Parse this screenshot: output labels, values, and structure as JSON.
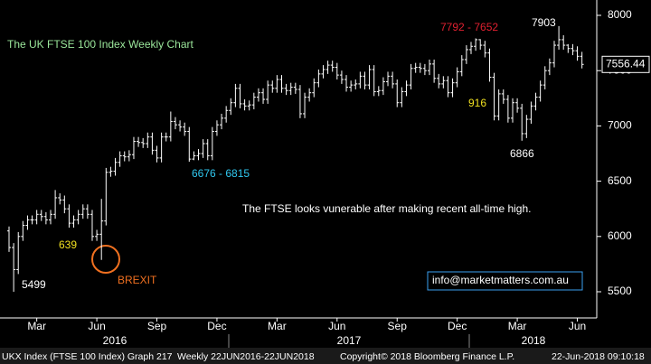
{
  "chart_data": {
    "type": "ohlc",
    "title": "The UK FTSE 100 Index Weekly Chart",
    "color": "#ffffff",
    "categories": [
      null,
      null,
      null,
      null,
      null,
      null,
      null,
      null,
      null,
      null,
      null,
      null,
      null,
      null,
      null,
      null,
      null,
      null,
      null,
      null,
      null,
      null,
      null,
      null,
      null,
      null,
      null,
      null,
      null,
      null,
      null,
      null,
      null,
      null,
      null,
      null,
      null,
      null,
      null,
      null,
      null,
      null,
      null,
      null,
      null,
      null,
      null,
      null,
      null,
      null,
      null,
      null,
      null,
      null,
      null,
      null,
      null,
      null,
      null,
      null,
      null,
      null,
      null,
      null,
      null,
      null,
      null,
      null,
      null,
      null,
      null,
      null,
      null,
      null,
      null,
      null,
      null,
      null,
      null,
      null,
      null,
      null,
      null,
      null,
      null,
      null,
      null,
      null,
      null,
      null,
      null,
      null,
      null,
      null,
      null,
      null,
      null,
      null,
      null,
      null,
      null,
      null,
      null,
      null,
      null,
      null,
      null,
      null,
      null,
      null,
      null,
      null,
      null,
      null,
      null,
      null,
      null,
      null,
      null,
      null,
      null,
      null,
      null,
      null,
      null
    ],
    "open": [
      6050,
      5900,
      5700,
      6000,
      6100,
      6150,
      6150,
      6200,
      6180,
      6150,
      6200,
      6350,
      6330,
      6250,
      6120,
      6150,
      6200,
      6250,
      6200,
      6000,
      6020,
      6140,
      6580,
      6590,
      6670,
      6730,
      6720,
      6740,
      6860,
      6850,
      6840,
      6900,
      6780,
      6710,
      6900,
      6900,
      7040,
      7010,
      6990,
      6950,
      6700,
      6730,
      6750,
      6840,
      6730,
      6950,
      7010,
      7070,
      7140,
      7210,
      7340,
      7200,
      7180,
      7190,
      7260,
      7300,
      7240,
      7370,
      7340,
      7420,
      7340,
      7320,
      7350,
      7330,
      7110,
      7260,
      7300,
      7390,
      7470,
      7510,
      7550,
      7530,
      7460,
      7420,
      7350,
      7370,
      7380,
      7450,
      7370,
      7510,
      7310,
      7320,
      7400,
      7450,
      7380,
      7210,
      7310,
      7370,
      7520,
      7530,
      7520,
      7500,
      7560,
      7430,
      7380,
      7410,
      7300,
      7390,
      7490,
      7600,
      7690,
      7720,
      7780,
      7730,
      7660,
      7440,
      7090,
      7290,
      7240,
      7070,
      7210,
      7160,
      6930,
      7060,
      7180,
      7260,
      7370,
      7500,
      7570,
      7730,
      7780,
      7730,
      7700,
      7680,
      7630
    ],
    "high": [
      6090,
      5940,
      6040,
      6140,
      6190,
      6190,
      6240,
      6240,
      6220,
      6240,
      6420,
      6390,
      6370,
      6290,
      6190,
      6240,
      6290,
      6290,
      6240,
      6060,
      6340,
      6620,
      6630,
      6710,
      6770,
      6770,
      6780,
      6900,
      6900,
      6890,
      6940,
      6940,
      6820,
      6940,
      6940,
      7130,
      7080,
      7050,
      7030,
      6990,
      6770,
      6790,
      6880,
      6880,
      6990,
      7050,
      7110,
      7180,
      7250,
      7380,
      7380,
      7240,
      7230,
      7300,
      7340,
      7340,
      7410,
      7410,
      7460,
      7460,
      7380,
      7390,
      7390,
      7370,
      7300,
      7340,
      7430,
      7510,
      7550,
      7590,
      7590,
      7570,
      7500,
      7460,
      7410,
      7420,
      7490,
      7490,
      7550,
      7550,
      7360,
      7440,
      7490,
      7490,
      7420,
      7350,
      7410,
      7560,
      7570,
      7570,
      7560,
      7600,
      7600,
      7470,
      7450,
      7450,
      7430,
      7530,
      7640,
      7730,
      7760,
      7792,
      7785,
      7770,
      7700,
      7480,
      7330,
      7330,
      7280,
      7250,
      7250,
      7200,
      7100,
      7220,
      7300,
      7410,
      7540,
      7610,
      7770,
      7903,
      7820,
      7740,
      7740,
      7720,
      7670
    ],
    "low": [
      5860,
      5499,
      5660,
      5960,
      6060,
      6110,
      6110,
      6140,
      6110,
      6110,
      6160,
      6290,
      6210,
      6080,
      6080,
      6110,
      6160,
      6160,
      5960,
      5960,
      5788,
      6100,
      6540,
      6550,
      6630,
      6680,
      6680,
      6700,
      6810,
      6800,
      6800,
      6740,
      6670,
      6670,
      6860,
      6860,
      6970,
      6950,
      6910,
      6676,
      6690,
      6690,
      6710,
      6690,
      6690,
      6910,
      6970,
      7030,
      7100,
      7170,
      7160,
      7140,
      7140,
      7150,
      7220,
      7200,
      7200,
      7300,
      7300,
      7300,
      7280,
      7280,
      7290,
      7070,
      7070,
      7220,
      7260,
      7350,
      7430,
      7470,
      7490,
      7420,
      7380,
      7310,
      7310,
      7330,
      7340,
      7330,
      7330,
      7270,
      7270,
      7280,
      7360,
      7340,
      7170,
      7170,
      7270,
      7330,
      7480,
      7480,
      7460,
      7460,
      7390,
      7340,
      7340,
      7260,
      7260,
      7350,
      7450,
      7560,
      7650,
      7680,
      7690,
      7620,
      7400,
      7050,
      7050,
      7200,
      7030,
      7030,
      7120,
      6866,
      6890,
      7020,
      7140,
      7220,
      7330,
      7460,
      7530,
      7690,
      7690,
      7660,
      7640,
      7590,
      7520
    ],
    "close": [
      5900,
      5700,
      6000,
      6100,
      6150,
      6150,
      6200,
      6180,
      6150,
      6200,
      6350,
      6330,
      6250,
      6120,
      6150,
      6200,
      6250,
      6200,
      6000,
      6020,
      6140,
      6580,
      6590,
      6670,
      6730,
      6720,
      6740,
      6860,
      6850,
      6840,
      6900,
      6780,
      6710,
      6900,
      6900,
      7040,
      7010,
      6990,
      6950,
      6700,
      6730,
      6750,
      6840,
      6730,
      6950,
      7010,
      7070,
      7140,
      7210,
      7340,
      7200,
      7180,
      7190,
      7260,
      7300,
      7240,
      7370,
      7340,
      7420,
      7340,
      7320,
      7350,
      7330,
      7110,
      7260,
      7300,
      7390,
      7470,
      7510,
      7550,
      7530,
      7460,
      7420,
      7350,
      7370,
      7380,
      7450,
      7370,
      7510,
      7310,
      7320,
      7400,
      7450,
      7380,
      7210,
      7310,
      7370,
      7520,
      7530,
      7520,
      7500,
      7560,
      7430,
      7380,
      7410,
      7300,
      7390,
      7490,
      7600,
      7690,
      7720,
      7780,
      7730,
      7660,
      7440,
      7090,
      7290,
      7240,
      7070,
      7210,
      7160,
      6930,
      7060,
      7180,
      7260,
      7370,
      7500,
      7570,
      7730,
      7780,
      7730,
      7700,
      7680,
      7630,
      7556.44
    ],
    "ylim": [
      5263,
      8139
    ],
    "yticks": [
      5500,
      6000,
      6500,
      7000,
      7500,
      8000
    ],
    "xticks": [
      {
        "value": 6,
        "label": "Mar"
      },
      {
        "value": 19,
        "label": "Jun"
      },
      {
        "value": 32,
        "label": "Sep"
      },
      {
        "value": 45,
        "label": "Dec"
      },
      {
        "value": 58,
        "label": "Mar"
      },
      {
        "value": 71,
        "label": "Jun"
      },
      {
        "value": 84,
        "label": "Sep"
      },
      {
        "value": 97,
        "label": "Dec"
      },
      {
        "value": 110,
        "label": "Mar"
      },
      {
        "value": 123,
        "label": "Jun"
      }
    ],
    "years": [
      "2016",
      "2017",
      "2018"
    ],
    "annotations": [
      "5499",
      "639",
      "BREXIT",
      "6676 - 6815",
      "7792 - 7652",
      "916",
      "6866",
      "7903",
      "The FTSE looks vunerable after making recent all-time high.",
      "info@marketmatters.com.au"
    ],
    "footer": [
      "UKX Index (FTSE 100 Index) Graph 217",
      "Weekly 22JUN2016-22JUN2018",
      "Copyright© 2018 Bloomberg Finance L.P.",
      "22-Jun-2018 09:10:18"
    ]
  }
}
